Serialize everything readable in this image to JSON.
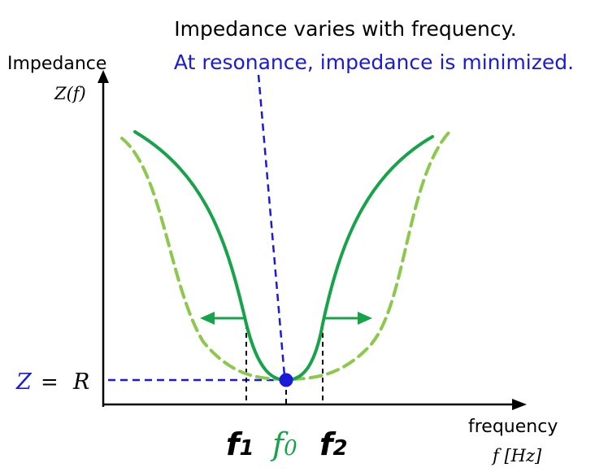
{
  "title": "Impedance varies with frequency.",
  "subtitle": "At resonance, impedance is minimized.",
  "y_axis": {
    "label": "Impedance",
    "symbol": "Z(f)"
  },
  "x_axis": {
    "label": "frequency",
    "symbol": "f [Hz]"
  },
  "z_label": {
    "lhs": "Z",
    "eq": "=",
    "rhs": "R"
  },
  "ticks": {
    "f1": {
      "main": "f",
      "sub": "1"
    },
    "f0": {
      "main": "f",
      "sub": "0"
    },
    "f2": {
      "main": "f",
      "sub": "2"
    }
  },
  "colors": {
    "axis": "#000000",
    "narrow_curve": "#16a34a",
    "wide_curve": "#8cc84b",
    "blue": "#1a1adb",
    "arrow": "#16a34a",
    "tick_dash": "#000000",
    "f0_label": "#16a34a"
  }
}
